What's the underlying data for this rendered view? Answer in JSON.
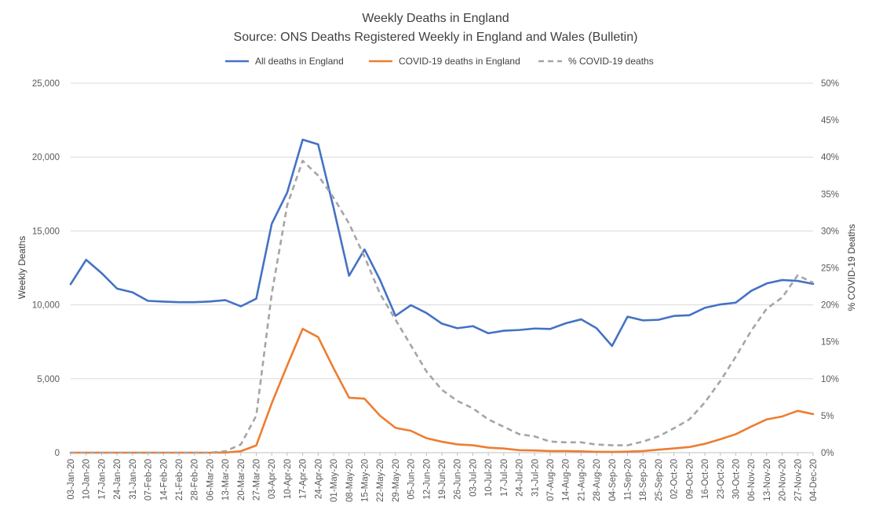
{
  "chart_data": {
    "type": "line",
    "title": "Weekly Deaths in England",
    "subtitle": "Source: ONS Deaths Registered Weekly in England and Wales (Bulletin)",
    "ylabel": "Weekly Deaths",
    "y2label": "% COVID-19 Deaths",
    "ylim": [
      0,
      25000
    ],
    "y2lim": [
      0,
      0.5
    ],
    "yticks": [
      "0",
      "5,000",
      "10,000",
      "15,000",
      "20,000",
      "25,000"
    ],
    "y2ticks": [
      "0%",
      "5%",
      "10%",
      "15%",
      "20%",
      "25%",
      "30%",
      "35%",
      "40%",
      "45%",
      "50%"
    ],
    "grid": true,
    "legend_position": "top-center",
    "categories": [
      "03-Jan-20",
      "10-Jan-20",
      "17-Jan-20",
      "24-Jan-20",
      "31-Jan-20",
      "07-Feb-20",
      "14-Feb-20",
      "21-Feb-20",
      "28-Feb-20",
      "06-Mar-20",
      "13-Mar-20",
      "20-Mar-20",
      "27-Mar-20",
      "03-Apr-20",
      "10-Apr-20",
      "17-Apr-20",
      "24-Apr-20",
      "01-May-20",
      "08-May-20",
      "15-May-20",
      "22-May-20",
      "29-May-20",
      "05-Jun-20",
      "12-Jun-20",
      "19-Jun-20",
      "26-Jun-20",
      "03-Jul-20",
      "10-Jul-20",
      "17-Jul-20",
      "24-Jul-20",
      "31-Jul-20",
      "07-Aug-20",
      "14-Aug-20",
      "21-Aug-20",
      "28-Aug-20",
      "04-Sep-20",
      "11-Sep-20",
      "18-Sep-20",
      "25-Sep-20",
      "02-Oct-20",
      "09-Oct-20",
      "16-Oct-20",
      "23-Oct-20",
      "30-Oct-20",
      "06-Nov-20",
      "13-Nov-20",
      "20-Nov-20",
      "27-Nov-20",
      "04-Dec-20"
    ],
    "series": [
      {
        "name": "All deaths in England",
        "axis": "left",
        "color": "#4472C4",
        "style": "solid",
        "values": [
          11400,
          13050,
          12150,
          11100,
          10850,
          10270,
          10220,
          10180,
          10180,
          10230,
          10320,
          9900,
          10420,
          15480,
          17600,
          21180,
          20860,
          16550,
          11970,
          13750,
          11690,
          9260,
          9980,
          9450,
          8730,
          8420,
          8560,
          8080,
          8250,
          8300,
          8400,
          8370,
          8750,
          9020,
          8420,
          7220,
          9200,
          8950,
          8990,
          9250,
          9300,
          9800,
          10030,
          10150,
          10950,
          11450,
          11680,
          11620,
          11420
        ]
      },
      {
        "name": "COVID-19 deaths in England",
        "axis": "left",
        "color": "#ED7D31",
        "style": "solid",
        "values": [
          0,
          0,
          0,
          0,
          0,
          0,
          0,
          0,
          0,
          0,
          10,
          100,
          490,
          3340,
          5900,
          8380,
          7820,
          5710,
          3720,
          3650,
          2500,
          1680,
          1480,
          980,
          740,
          560,
          500,
          340,
          280,
          170,
          150,
          110,
          110,
          90,
          60,
          50,
          70,
          110,
          200,
          290,
          380,
          600,
          910,
          1250,
          1770,
          2250,
          2450,
          2830,
          2610
        ]
      },
      {
        "name": "% COVID-19 deaths",
        "axis": "right",
        "color": "#A5A5A5",
        "style": "dashed",
        "values": [
          0,
          0,
          0,
          0,
          0,
          0,
          0,
          0,
          0,
          0,
          0.002,
          0.011,
          0.05,
          0.215,
          0.335,
          0.395,
          0.375,
          0.345,
          0.31,
          0.265,
          0.215,
          0.18,
          0.145,
          0.11,
          0.085,
          0.07,
          0.06,
          0.045,
          0.035,
          0.025,
          0.022,
          0.015,
          0.014,
          0.014,
          0.011,
          0.01,
          0.01,
          0.015,
          0.022,
          0.033,
          0.045,
          0.068,
          0.097,
          0.13,
          0.165,
          0.195,
          0.21,
          0.24,
          0.23
        ]
      }
    ]
  }
}
